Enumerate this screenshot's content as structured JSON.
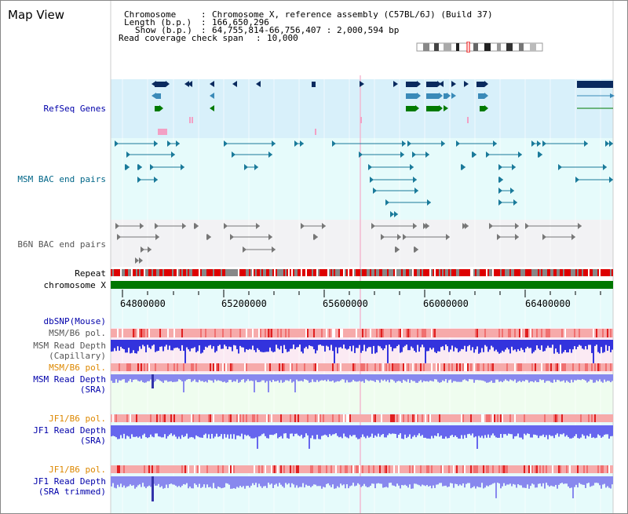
{
  "window": {
    "title": "Map View"
  },
  "header": {
    "chromosome_key": "Chromosome",
    "chromosome_value": "Chromosome X, reference assembly (C57BL/6J) (Build 37)",
    "length_key": "Length (b.p.)",
    "length_value": "166,650,296",
    "show_key": "Show (b.p.)",
    "show_value": "64,755,814-66,756,407 : 2,000,594 bp",
    "coverage_key": "Read coverage check span",
    "coverage_value": "10,000"
  },
  "tracks": {
    "refseq": "RefSeq Genes",
    "msm_bac": "MSM BAC end pairs",
    "b6n_bac": "B6N BAC end pairs",
    "repeat": "Repeat",
    "chromosome": "chromosome X",
    "dbsnp": "dbSNP(Mouse)",
    "msm_b6_pol_1": "MSM/B6 pol.",
    "msm_read_depth_cap_1": "MSM Read Depth",
    "msm_read_depth_cap_2": "(Capillary)",
    "msm_b6_pol_2": "MSM/B6 pol.",
    "msm_read_depth_sra_1": "MSM Read Depth",
    "msm_read_depth_sra_2": "(SRA)",
    "jf1_b6_pol_1": "JF1/B6 pol.",
    "jf1_read_depth_sra_1": "JF1 Read Depth",
    "jf1_read_depth_sra_2": "(SRA)",
    "jf1_b6_pol_2": "JF1/B6 pol.",
    "jf1_read_depth_trim_1": "JF1 Read Depth",
    "jf1_read_depth_trim_2": "(SRA trimmed)"
  },
  "axis": {
    "ticks": [
      "64800000",
      "65200000",
      "65600000",
      "66000000",
      "66400000"
    ]
  },
  "colors": {
    "refseq_bg": "#d8f0fa",
    "msm_bg": "#e6fbfb",
    "b6n_bg": "#f2f2f4",
    "pink_bg": "#fbeaf3",
    "green_bg": "#effdef",
    "cyan_bg": "#e6fbfb",
    "chrom_green": "#007700",
    "repeat_red": "#dd0000",
    "depth_blue": "#3333dd",
    "depth_sra": "#8888ee",
    "jf1_depth": "#6666ee"
  }
}
